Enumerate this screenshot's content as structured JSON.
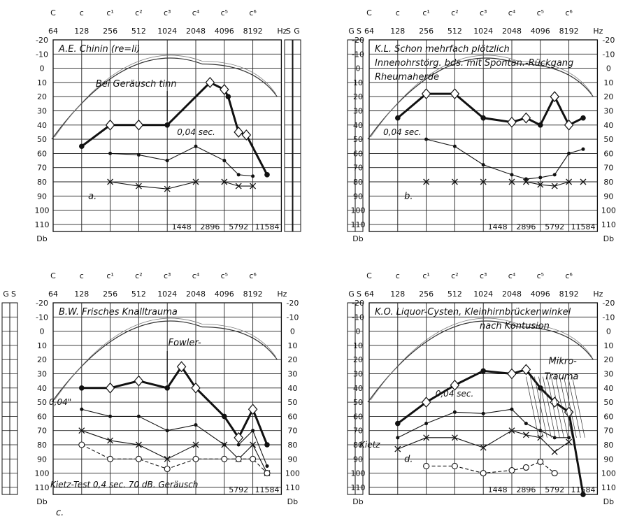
{
  "chart_data": [
    {
      "type": "line",
      "panel_label": "a.",
      "title": "A.E. Chinin (re=li)",
      "annotations": [
        "Bei Geräusch tinn",
        "0,04 sec."
      ],
      "note_labels": [
        "C",
        "c",
        "c¹",
        "c²",
        "c³",
        "c⁴",
        "c⁵",
        "c⁶"
      ],
      "freq_labels": [
        "64",
        "128",
        "256",
        "512",
        "1024",
        "2048",
        "4096",
        "8192"
      ],
      "hz_label": "Hz",
      "half_freq_labels": [
        "1448",
        "2896",
        "5792",
        "11584"
      ],
      "db_ticks": [
        "-20",
        "-10",
        "0",
        "10",
        "20",
        "30",
        "40",
        "50",
        "60",
        "70",
        "80",
        "90",
        "100",
        "110"
      ],
      "db_label": "Db",
      "side_labels": [
        "S",
        "G"
      ],
      "ylim": [
        -20,
        115
      ],
      "series": [
        {
          "style": "bold-diamond",
          "x": [
            128,
            256,
            512,
            1024,
            2896,
            4096,
            4500,
            5792,
            7000,
            11584
          ],
          "y": [
            55,
            40,
            40,
            40,
            10,
            15,
            20,
            45,
            47,
            75
          ]
        },
        {
          "style": "thin-dot",
          "x": [
            256,
            512,
            1024,
            2048,
            4096,
            5792,
            8192
          ],
          "y": [
            60,
            61,
            65,
            55,
            65,
            75,
            76
          ]
        },
        {
          "style": "cross",
          "x": [
            256,
            512,
            1024,
            2048,
            4096,
            5792,
            8192
          ],
          "y": [
            80,
            83,
            85,
            80,
            80,
            83,
            83
          ]
        }
      ]
    },
    {
      "type": "line",
      "panel_label": "b.",
      "title": "K.L. Schon mehrfach plötzlich",
      "title_lines": [
        "Innenohrstörg. bds. mit Spontan.-Rückgang",
        "Rheumaherde"
      ],
      "annotations": [
        "0,04 sec."
      ],
      "note_labels": [
        "C",
        "c",
        "c¹",
        "c²",
        "c³",
        "c⁴",
        "c⁵",
        "c⁶"
      ],
      "freq_labels": [
        "64",
        "128",
        "256",
        "512",
        "1024",
        "2048",
        "4096",
        "8192"
      ],
      "hz_label": "Hz",
      "half_freq_labels": [
        "1448",
        "2896",
        "5792",
        "11584"
      ],
      "db_ticks": [
        "-20",
        "-10",
        "0",
        "10",
        "20",
        "30",
        "40",
        "50",
        "60",
        "70",
        "80",
        "90",
        "100",
        "110"
      ],
      "db_label": "Db",
      "side_labels": [
        "G",
        "S"
      ],
      "ylim": [
        -20,
        115
      ],
      "series": [
        {
          "style": "bold-diamond",
          "x": [
            128,
            256,
            512,
            1024,
            2048,
            2896,
            4096,
            5792,
            8192,
            11584
          ],
          "y": [
            35,
            18,
            18,
            35,
            38,
            35,
            40,
            20,
            40,
            35
          ]
        },
        {
          "style": "thin-dot",
          "x": [
            256,
            512,
            1024,
            2048,
            2896,
            4096,
            5792,
            8192,
            11584
          ],
          "y": [
            50,
            55,
            68,
            75,
            78,
            77,
            75,
            60,
            57
          ]
        },
        {
          "style": "cross",
          "x": [
            256,
            512,
            1024,
            2048,
            2896,
            4096,
            5792,
            8192,
            11584
          ],
          "y": [
            80,
            80,
            80,
            80,
            80,
            82,
            83,
            80,
            80
          ]
        }
      ]
    },
    {
      "type": "line",
      "panel_label": "c.",
      "title": "B.W. Frisches Knalltrauma",
      "annotations": [
        "Fowler-",
        "0,04\"",
        "Kietz-Test 0,4 sec. 70 dB. Geräusch"
      ],
      "note_labels": [
        "C",
        "c",
        "c¹",
        "c²",
        "c³",
        "c⁴",
        "c⁵",
        "c⁶"
      ],
      "freq_labels": [
        "64",
        "128",
        "256",
        "512",
        "1024",
        "2048",
        "4096",
        "8192"
      ],
      "hz_label": "Hz",
      "half_freq_labels": [
        "5792",
        "11584"
      ],
      "db_ticks": [
        "-20",
        "-10",
        "0",
        "10",
        "20",
        "30",
        "40",
        "50",
        "60",
        "70",
        "80",
        "90",
        "100",
        "110"
      ],
      "db_label": "Db",
      "side_labels": [
        "G",
        "S"
      ],
      "ylim": [
        -20,
        115
      ],
      "series": [
        {
          "style": "bold-diamond",
          "x": [
            128,
            256,
            512,
            1024,
            1448,
            2048,
            4096,
            5792,
            8192,
            11584
          ],
          "y": [
            40,
            40,
            35,
            40,
            25,
            40,
            60,
            75,
            55,
            80
          ]
        },
        {
          "style": "thin-dot",
          "x": [
            128,
            256,
            512,
            1024,
            2048,
            4096,
            5792,
            8192,
            11584
          ],
          "y": [
            55,
            60,
            60,
            70,
            66,
            80,
            80,
            70,
            95
          ]
        },
        {
          "style": "cross",
          "x": [
            128,
            256,
            512,
            1024,
            2048,
            4096,
            5792,
            8192,
            11584
          ],
          "y": [
            70,
            77,
            80,
            90,
            80,
            80,
            90,
            80,
            100
          ]
        },
        {
          "style": "circle-dashed",
          "x": [
            128,
            256,
            512,
            1024,
            2048,
            4096,
            5792,
            8192,
            11584
          ],
          "y": [
            80,
            90,
            90,
            97,
            90,
            90,
            90,
            90,
            100
          ]
        }
      ]
    },
    {
      "type": "line",
      "panel_label": "d.",
      "title": "K.O. Liquor-Cysten, Kleinhirnbrückenwinkel",
      "title_lines": [
        "nach Kontusion"
      ],
      "annotations": [
        "0,04 sec.",
        "Mikro-",
        "Trauma",
        "Kietz"
      ],
      "note_labels": [
        "C",
        "c",
        "c¹",
        "c²",
        "c³",
        "c⁴",
        "c⁵",
        "c⁶"
      ],
      "freq_labels": [
        "64",
        "128",
        "256",
        "512",
        "1024",
        "2048",
        "4096",
        "8192"
      ],
      "hz_label": "Hz",
      "half_freq_labels": [
        "1448",
        "2896",
        "5792",
        "11584"
      ],
      "db_ticks": [
        "-20",
        "-10",
        "0",
        "10",
        "20",
        "30",
        "40",
        "50",
        "60",
        "70",
        "80",
        "90",
        "100",
        "110"
      ],
      "db_label": "Db",
      "side_labels": [
        "G",
        "S"
      ],
      "ylim": [
        -20,
        115
      ],
      "series": [
        {
          "style": "bold-diamond",
          "x": [
            128,
            256,
            512,
            1024,
            2048,
            2896,
            4096,
            5792,
            8192,
            11584
          ],
          "y": [
            65,
            50,
            38,
            28,
            30,
            27,
            40,
            50,
            57,
            115
          ]
        },
        {
          "style": "thin-dot",
          "x": [
            128,
            256,
            512,
            1024,
            2048,
            2896,
            4096,
            5792,
            8192
          ],
          "y": [
            75,
            65,
            57,
            58,
            55,
            65,
            70,
            75,
            75
          ]
        },
        {
          "style": "cross",
          "x": [
            128,
            256,
            512,
            1024,
            2048,
            2896,
            4096,
            5792,
            8192
          ],
          "y": [
            83,
            75,
            75,
            82,
            70,
            73,
            75,
            85,
            78
          ]
        },
        {
          "style": "circle-dashed",
          "x": [
            256,
            512,
            1024,
            2048,
            2896,
            4096,
            5792
          ],
          "y": [
            95,
            95,
            100,
            98,
            96,
            92,
            100
          ]
        }
      ]
    }
  ]
}
